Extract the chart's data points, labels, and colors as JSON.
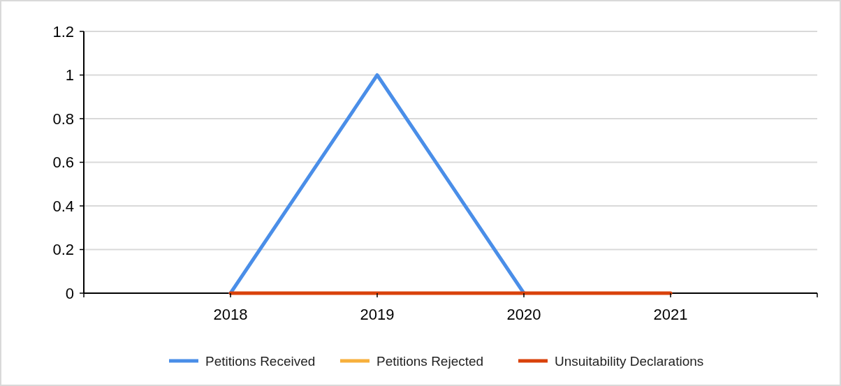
{
  "chart_data": {
    "type": "line",
    "categories": [
      "2018",
      "2019",
      "2020",
      "2021"
    ],
    "series": [
      {
        "name": "Petitions Received",
        "color": "#4a8ee8",
        "values": [
          0,
          1,
          0,
          null
        ]
      },
      {
        "name": "Petitions Rejected",
        "color": "#f7b03c",
        "values": [
          null,
          null,
          null,
          null
        ]
      },
      {
        "name": "Unsuitability Declarations",
        "color": "#d9420b",
        "values": [
          0,
          0,
          0,
          0
        ]
      }
    ],
    "ylim": [
      0,
      1.2
    ],
    "yticks": [
      0,
      0.2,
      0.4,
      0.6,
      0.8,
      1,
      1.2
    ],
    "grid": "y",
    "legend": "bottom",
    "marker": "none",
    "line_style": "solid"
  }
}
